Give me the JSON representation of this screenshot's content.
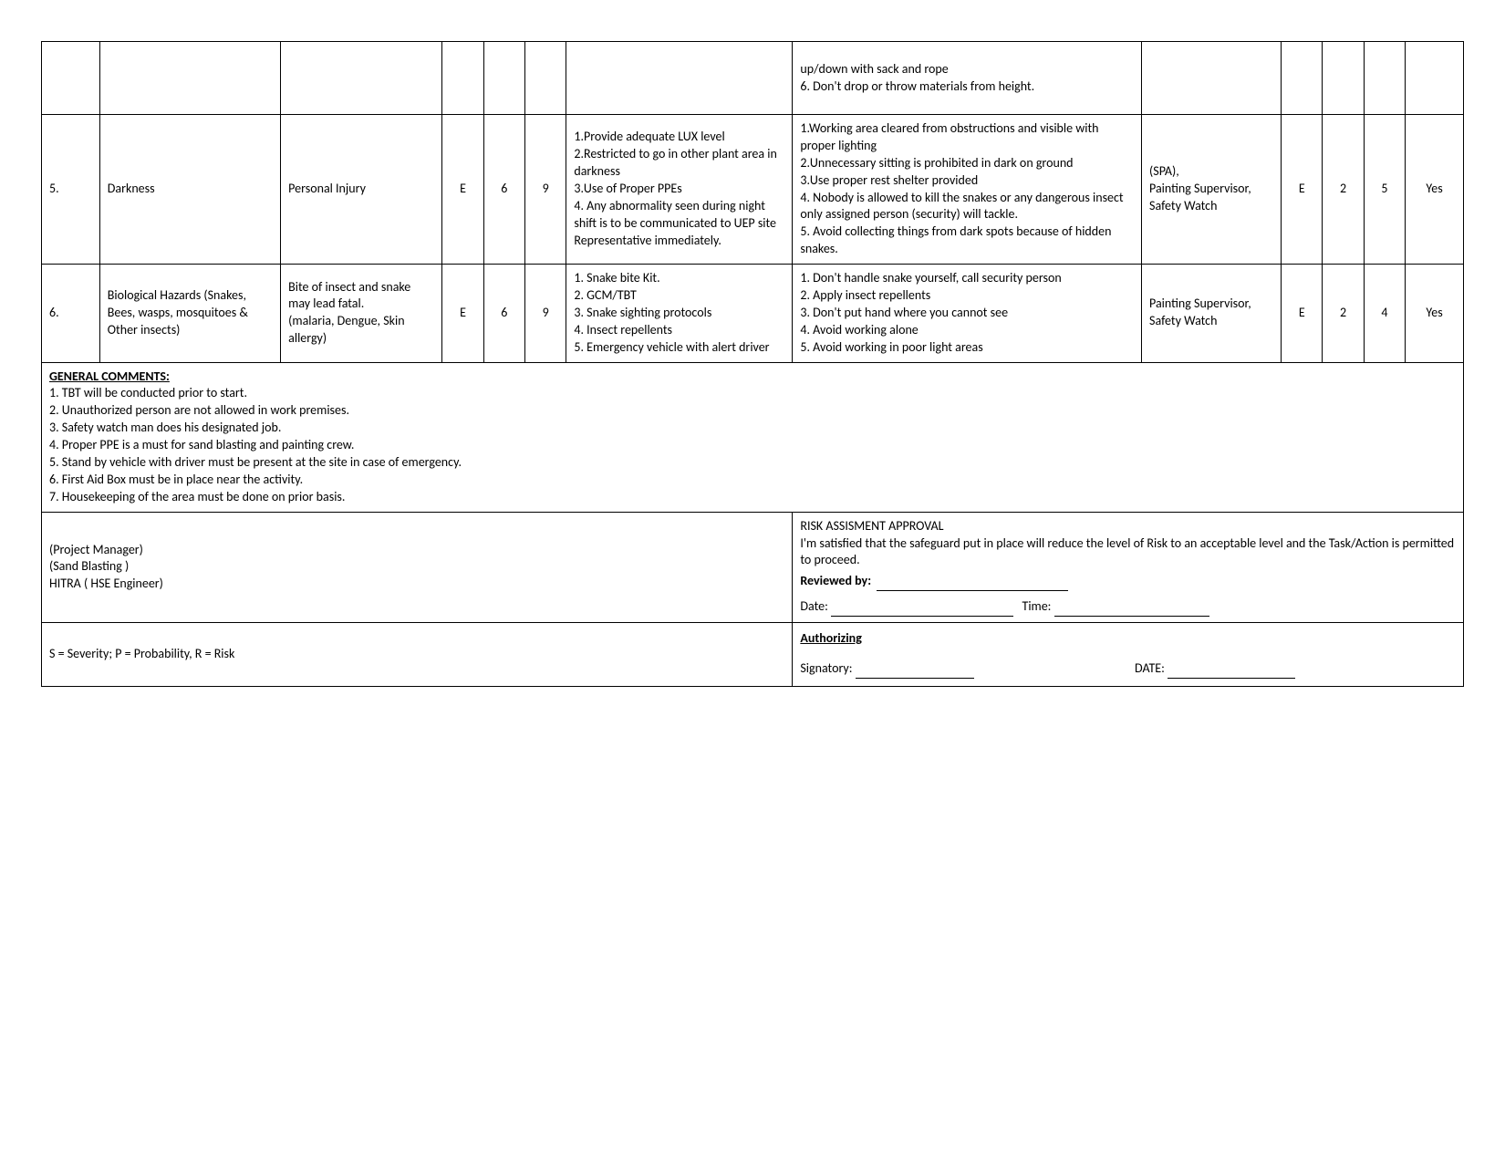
{
  "rows": [
    {
      "num": "",
      "hazard": "",
      "effect": "",
      "s1": "",
      "p1": "",
      "r1": "",
      "controls": "",
      "recovery": " up/down with sack and rope\n6. Don't drop or throw materials from height.",
      "resp": "",
      "s2": "",
      "p2": "",
      "r2": "",
      "yes": ""
    },
    {
      "num": "5.",
      "hazard": "Darkness",
      "effect": "Personal Injury",
      "s1": "E",
      "p1": "6",
      "r1": "9",
      "controls": "1.Provide adequate LUX level\n2.Restricted to go in other plant area in darkness\n3.Use of Proper PPEs\n4. Any abnormality seen during night shift is to be communicated to UEP site Representative immediately.",
      "recovery": "1.Working area cleared from obstructions and visible with proper lighting\n2.Unnecessary sitting is prohibited in dark on ground\n3.Use proper rest shelter provided\n4. Nobody is allowed to kill the snakes or any dangerous insect only assigned person (security) will tackle.\n5. Avoid collecting things from dark spots because of hidden snakes.",
      "resp": "(SPA),\nPainting Supervisor, Safety Watch",
      "s2": "E",
      "p2": "2",
      "r2": "5",
      "yes": "Yes"
    },
    {
      "num": "6.",
      "hazard": "Biological Hazards (Snakes, Bees, wasps, mosquitoes & Other insects)",
      "effect": "Bite of insect and snake may lead fatal.\n(malaria, Dengue, Skin allergy)",
      "s1": "E",
      "p1": "6",
      "r1": "9",
      "controls": "1. Snake bite Kit.\n2. GCM/TBT\n3. Snake sighting protocols\n4. Insect repellents\n5. Emergency vehicle with alert driver",
      "recovery": "1. Don't handle snake yourself, call security person\n2. Apply insect repellents\n3. Don't put hand where you cannot see\n4. Avoid working alone\n5. Avoid working in poor light areas",
      "resp": "Painting Supervisor, Safety Watch",
      "s2": "E",
      "p2": "2",
      "r2": "4",
      "yes": "Yes"
    }
  ],
  "comments": {
    "title": "GENERAL COMMENTS:",
    "lines": [
      "1. TBT will be conducted prior to start.",
      "2. Unauthorized person are not allowed in work premises.",
      "3. Safety watch man does his designated job.",
      "4. Proper PPE is a must for sand blasting and painting crew.",
      "5. Stand by vehicle with driver must be present at the site in case of emergency.",
      "6. First Aid Box must be in place near the activity.",
      "7. Housekeeping of the area must be done on prior basis."
    ]
  },
  "footer": {
    "roles": [
      " (Project Manager)",
      "(Sand Blasting )",
      "HITRA  ( HSE Engineer)"
    ],
    "approval_title": "RISK ASSISMENT APPROVAL",
    "approval_text": "I'm satisfied that the safeguard put in place will reduce the level of Risk to an acceptable level and the Task/Action is permitted to proceed.",
    "reviewed_label": "Reviewed by:",
    "date_label": "Date:",
    "time_label": "Time:",
    "legend": "S = Severity; P = Probability, R = Risk",
    "auth_title": "Authorizing",
    "signatory_label": "Signatory:",
    "date2_label": "DATE:"
  }
}
